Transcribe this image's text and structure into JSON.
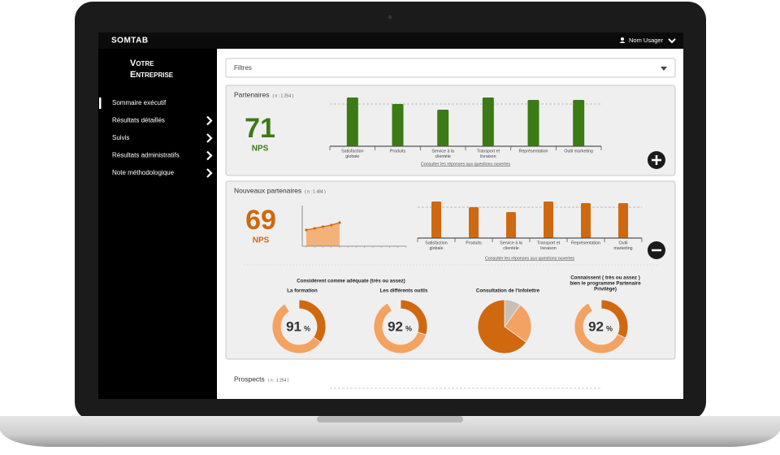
{
  "topbar": {
    "logo": "SOMTAB",
    "user": "Nom Usager"
  },
  "sidebar": {
    "title": [
      "Votre",
      "Entreprise"
    ],
    "menu": [
      "Sommaire exécutif",
      "Résultats détaillés",
      "Suivis",
      "Résultats administratifs",
      "Note méthodologique"
    ],
    "menu_arrows": [
      false,
      true,
      true,
      true,
      true
    ]
  },
  "filters": "Filtres",
  "partenaires": {
    "title": "Partenaires",
    "n": "( n : 1 254 )",
    "score": 71,
    "score_label": "NPS",
    "color": "#3b7a14",
    "bars": {
      "type": "bar",
      "categories": [
        [
          "Satisfaction",
          "globale"
        ],
        [
          "Produits"
        ],
        [
          "Service à la",
          "clientèle"
        ],
        [
          "Transport et",
          "livraison"
        ],
        [
          "Représentation"
        ],
        [
          "Outil marketing"
        ]
      ],
      "values": [
        60,
        52,
        45,
        60,
        57,
        57
      ],
      "reference": 52,
      "ylim": [
        0,
        65
      ],
      "color": "#3b7a14"
    },
    "link": "Consulter les réponses aux questions ouvertes"
  },
  "nouveaux": {
    "title": "Nouveaux partenaires",
    "n": "( n : 1 484 )",
    "score": 69,
    "score_label": "NPS",
    "color": "#d0680f",
    "trend": {
      "type": "area",
      "categories": [
        null,
        null,
        null,
        null,
        null,
        null,
        null,
        null,
        null,
        null,
        null,
        null,
        null
      ],
      "values": [
        40,
        44,
        48,
        52,
        58,
        null,
        null,
        null,
        null,
        null,
        null,
        null,
        null
      ],
      "ylim": [
        0,
        100
      ],
      "color": "#d0680f",
      "fill": "#f2b27a"
    },
    "bars": {
      "type": "bar",
      "categories": [
        [
          "Satisfaction",
          "globale"
        ],
        [
          "Produits"
        ],
        [
          "Service à la",
          "clientèle"
        ],
        [
          "Transport et",
          "livraison"
        ],
        [
          "Représentation"
        ],
        [
          "Outil",
          "marketing"
        ]
      ],
      "values": [
        45,
        38,
        32,
        45,
        43,
        43
      ],
      "reference": 38,
      "ylim": [
        0,
        50
      ],
      "color": "#d0680f"
    },
    "link": "Consulter les réponses aux questions ouvertes",
    "donut_heading": "Considérent comme adéquate (très ou assez)",
    "donuts": [
      {
        "type": "donut",
        "label": [
          "La formation"
        ],
        "value": 91,
        "unit": "%",
        "segments": [
          35,
          56
        ],
        "colors": [
          "#d0680f",
          "#f4a261"
        ]
      },
      {
        "type": "donut",
        "label": [
          "Les différents outils"
        ],
        "value": 92,
        "unit": "%",
        "segments": [
          30,
          62
        ],
        "colors": [
          "#d0680f",
          "#f4a261"
        ]
      },
      {
        "type": "pie",
        "label": [
          "Consultation de l'infolettre"
        ],
        "segments": [
          10,
          25,
          65
        ],
        "colors": [
          "#c9bfb5",
          "#f4a261",
          "#d0680f"
        ]
      },
      {
        "type": "donut",
        "label": [
          "Connaissent ( très ou assez )",
          "bien le programme Partenaire",
          "Privilège)"
        ],
        "value": 92,
        "unit": "%",
        "segments": [
          32,
          60
        ],
        "colors": [
          "#d0680f",
          "#f4a261"
        ]
      }
    ]
  },
  "prospects": {
    "title": "Prospects",
    "n": "( n : 1 254 )"
  }
}
